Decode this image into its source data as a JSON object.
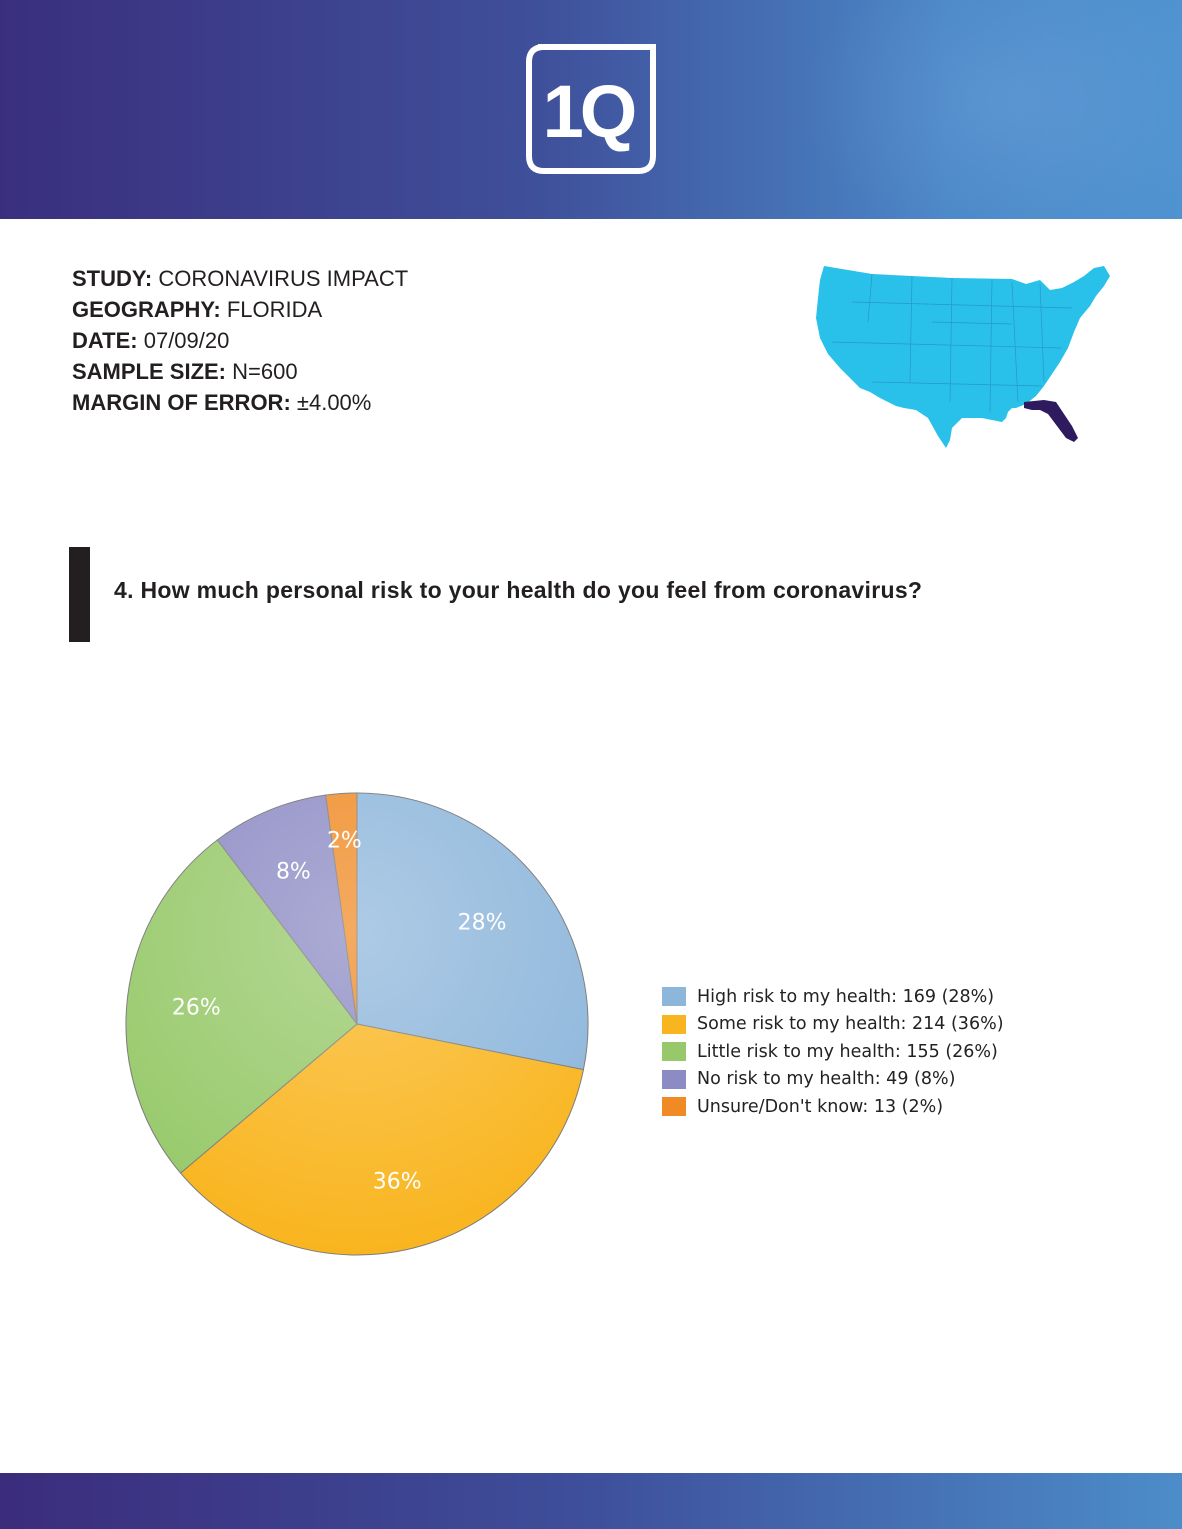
{
  "header": {
    "logo_text": "1Q"
  },
  "study": {
    "rows": [
      {
        "key": "STUDY:",
        "value": "CORONAVIRUS IMPACT"
      },
      {
        "key": "GEOGRAPHY:",
        "value": "FLORIDA"
      },
      {
        "key": "DATE:",
        "value": "07/09/20"
      },
      {
        "key": "SAMPLE SIZE:",
        "value": "N=600"
      },
      {
        "key": "MARGIN OF ERROR:",
        "value": "±4.00%"
      }
    ]
  },
  "map": {
    "base_color": "#29c1ea",
    "highlight_color": "#2e1a5e"
  },
  "question": {
    "text": "4. How much personal risk to your health do you feel from coronavirus?"
  },
  "chart_data": {
    "type": "pie",
    "slices": [
      {
        "label": "High risk to my health",
        "count": 169,
        "percent": 28,
        "display": "28%",
        "legend": "High risk to my health: 169 (28%)",
        "color": "#8db6db"
      },
      {
        "label": "Some risk to my health",
        "count": 214,
        "percent": 36,
        "display": "36%",
        "legend": "Some risk to my health: 214 (36%)",
        "color": "#f9b51f"
      },
      {
        "label": "Little risk to my health",
        "count": 155,
        "percent": 26,
        "display": "26%",
        "legend": "Little risk to my health: 155 (26%)",
        "color": "#97c96a"
      },
      {
        "label": "No risk to my health",
        "count": 49,
        "percent": 8,
        "display": "8%",
        "legend": "No risk to my health: 49 (8%)",
        "color": "#8c8bc4"
      },
      {
        "label": "Unsure/Don't know",
        "count": 13,
        "percent": 2,
        "display": "2%",
        "legend": "Unsure/Don't know: 13 (2%)",
        "color": "#f08a24"
      }
    ],
    "legend_position": "right"
  }
}
